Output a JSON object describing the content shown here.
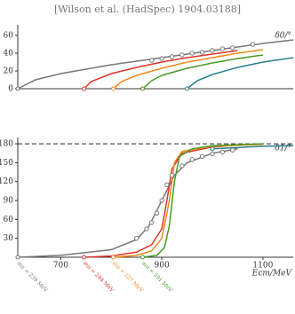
{
  "chart_data": [
    {
      "type": "line",
      "subtitle": "[Wilson et al. (HadSpec) 1904.03188]",
      "ylabel": "δ0/°",
      "xlim": [
        615,
        1160
      ],
      "ylim": [
        0,
        72
      ],
      "yticks": [
        0,
        20,
        40,
        60
      ],
      "series": [
        {
          "color": "#777777",
          "x": [
            615,
            650,
            700,
            750,
            800,
            850,
            900,
            950,
            1000,
            1050,
            1100,
            1160
          ],
          "values": [
            0,
            10,
            17,
            22,
            27,
            31,
            35,
            39,
            43,
            47,
            51,
            55
          ]
        },
        {
          "color": "#e0352b",
          "x": [
            746,
            760,
            800,
            850,
            900,
            950,
            1000,
            1050
          ],
          "values": [
            0,
            8,
            17,
            24,
            30,
            35,
            39,
            43
          ]
        },
        {
          "color": "#f08a1c",
          "x": [
            804,
            820,
            850,
            900,
            950,
            1000,
            1050,
            1100
          ],
          "values": [
            0,
            8,
            15,
            23,
            30,
            35,
            40,
            44
          ]
        },
        {
          "color": "#4a9a2a",
          "x": [
            862,
            880,
            900,
            950,
            1000,
            1050,
            1100
          ],
          "values": [
            0,
            9,
            15,
            23,
            29,
            34,
            38
          ]
        },
        {
          "color": "#2a7f8a",
          "x": [
            950,
            970,
            1000,
            1050,
            1100,
            1160
          ],
          "values": [
            0,
            9,
            16,
            24,
            30,
            35
          ]
        },
        {
          "color": "#777777",
          "markers": true,
          "x": [
            880,
            900,
            920,
            940,
            960,
            980,
            1000,
            1020,
            1040,
            1080
          ],
          "values": [
            32,
            34,
            36,
            38,
            40,
            41,
            43,
            45,
            46,
            50
          ]
        }
      ]
    },
    {
      "type": "line",
      "ylabel": "δ1/°",
      "xlabel": "Ecm/MeV",
      "xlim": [
        615,
        1160
      ],
      "xticks": [
        700,
        900,
        1100
      ],
      "ylim": [
        0,
        190
      ],
      "yticks": [
        30,
        60,
        90,
        120,
        150,
        180
      ],
      "hline": 180,
      "series": [
        {
          "name": "mπ = 239 MeV",
          "color": "#777777",
          "x": [
            615,
            700,
            800,
            850,
            875,
            900,
            925,
            950,
            1000,
            1050
          ],
          "values": [
            0,
            3,
            12,
            28,
            50,
            90,
            130,
            150,
            165,
            172
          ]
        },
        {
          "name": "mπ = 284 MeV",
          "color": "#e0352b",
          "x": [
            746,
            800,
            850,
            880,
            900,
            910,
            920,
            940,
            1000,
            1050
          ],
          "values": [
            0,
            2,
            8,
            20,
            45,
            90,
            140,
            165,
            175,
            178
          ]
        },
        {
          "name": "mπ = 327 MeV",
          "color": "#f08a1c",
          "x": [
            804,
            850,
            880,
            900,
            915,
            925,
            940,
            1000,
            1100
          ],
          "values": [
            0,
            3,
            10,
            30,
            90,
            150,
            168,
            176,
            179
          ]
        },
        {
          "name": "mπ = 391 MeV",
          "color": "#4a9a2a",
          "x": [
            862,
            890,
            905,
            915,
            925,
            935,
            960,
            1000,
            1100
          ],
          "values": [
            0,
            3,
            15,
            50,
            120,
            160,
            172,
            177,
            180
          ]
        },
        {
          "color": "#2a7f8a",
          "x": [
            1000,
            1050,
            1100,
            1160
          ],
          "values": [
            172,
            174,
            176,
            177
          ]
        },
        {
          "color": "#777777",
          "markers": true,
          "x": [
            850,
            870,
            880,
            890,
            900,
            910,
            920,
            940,
            960,
            980,
            1000,
            1020,
            1040
          ],
          "values": [
            30,
            45,
            55,
            70,
            90,
            115,
            130,
            145,
            155,
            160,
            164,
            167,
            170
          ]
        }
      ]
    }
  ]
}
